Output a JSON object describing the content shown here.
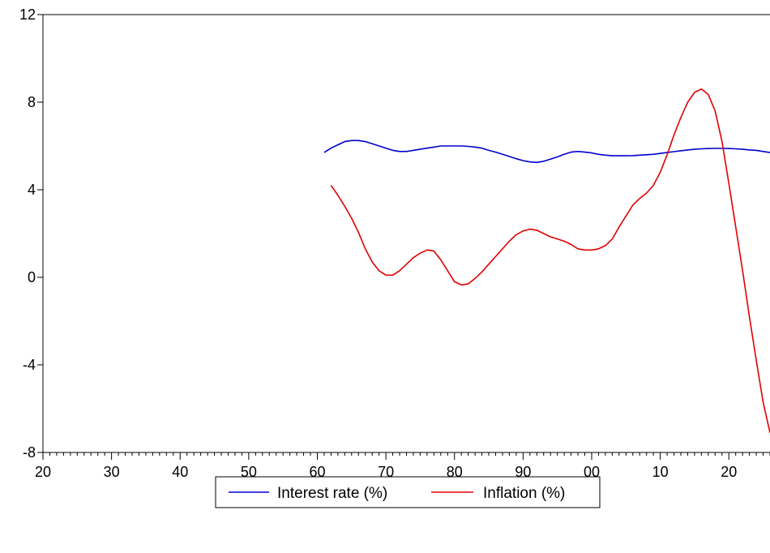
{
  "chart_data": {
    "type": "line",
    "title": "",
    "xlabel": "",
    "ylabel": "",
    "x_range": [
      1920,
      2026
    ],
    "ylim": [
      -8,
      12
    ],
    "y_ticks": [
      12,
      8,
      4,
      0,
      -4,
      -8
    ],
    "x_ticks": [
      {
        "value": 1920,
        "label": "20"
      },
      {
        "value": 1930,
        "label": "30"
      },
      {
        "value": 1940,
        "label": "40"
      },
      {
        "value": 1950,
        "label": "50"
      },
      {
        "value": 1960,
        "label": "60"
      },
      {
        "value": 1970,
        "label": "70"
      },
      {
        "value": 1980,
        "label": "80"
      },
      {
        "value": 1990,
        "label": "90"
      },
      {
        "value": 2000,
        "label": "00"
      },
      {
        "value": 2010,
        "label": "10"
      },
      {
        "value": 2020,
        "label": "20"
      }
    ],
    "grid": false,
    "legend_position": "bottom-center",
    "series": [
      {
        "name": "Interest rate (%)",
        "color": "#0000cc",
        "points": [
          [
            1961,
            5.7
          ],
          [
            1962,
            5.9
          ],
          [
            1963,
            6.05
          ],
          [
            1964,
            6.2
          ],
          [
            1965,
            6.25
          ],
          [
            1966,
            6.25
          ],
          [
            1967,
            6.2
          ],
          [
            1968,
            6.1
          ],
          [
            1969,
            6.0
          ],
          [
            1970,
            5.9
          ],
          [
            1971,
            5.8
          ],
          [
            1972,
            5.75
          ],
          [
            1973,
            5.75
          ],
          [
            1974,
            5.8
          ],
          [
            1975,
            5.85
          ],
          [
            1976,
            5.9
          ],
          [
            1977,
            5.95
          ],
          [
            1978,
            6.0
          ],
          [
            1979,
            6.0
          ],
          [
            1980,
            6.0
          ],
          [
            1981,
            6.0
          ],
          [
            1982,
            5.98
          ],
          [
            1983,
            5.95
          ],
          [
            1984,
            5.9
          ],
          [
            1985,
            5.8
          ],
          [
            1986,
            5.72
          ],
          [
            1987,
            5.62
          ],
          [
            1988,
            5.52
          ],
          [
            1989,
            5.42
          ],
          [
            1990,
            5.33
          ],
          [
            1991,
            5.27
          ],
          [
            1992,
            5.25
          ],
          [
            1993,
            5.3
          ],
          [
            1994,
            5.4
          ],
          [
            1995,
            5.5
          ],
          [
            1996,
            5.62
          ],
          [
            1997,
            5.72
          ],
          [
            1998,
            5.75
          ],
          [
            1999,
            5.72
          ],
          [
            2000,
            5.68
          ],
          [
            2001,
            5.62
          ],
          [
            2002,
            5.58
          ],
          [
            2003,
            5.55
          ],
          [
            2004,
            5.55
          ],
          [
            2005,
            5.55
          ],
          [
            2006,
            5.56
          ],
          [
            2007,
            5.58
          ],
          [
            2008,
            5.6
          ],
          [
            2009,
            5.62
          ],
          [
            2010,
            5.66
          ],
          [
            2011,
            5.7
          ],
          [
            2012,
            5.74
          ],
          [
            2013,
            5.78
          ],
          [
            2014,
            5.82
          ],
          [
            2015,
            5.85
          ],
          [
            2016,
            5.87
          ],
          [
            2017,
            5.88
          ],
          [
            2018,
            5.89
          ],
          [
            2019,
            5.89
          ],
          [
            2020,
            5.88
          ],
          [
            2021,
            5.87
          ],
          [
            2022,
            5.85
          ],
          [
            2023,
            5.82
          ],
          [
            2024,
            5.8
          ],
          [
            2025,
            5.75
          ],
          [
            2026,
            5.7
          ]
        ]
      },
      {
        "name": "Inflation (%)",
        "color": "#e00000",
        "points": [
          [
            1962,
            4.2
          ],
          [
            1963,
            3.75
          ],
          [
            1964,
            3.25
          ],
          [
            1965,
            2.7
          ],
          [
            1966,
            2.05
          ],
          [
            1967,
            1.3
          ],
          [
            1968,
            0.7
          ],
          [
            1969,
            0.3
          ],
          [
            1970,
            0.1
          ],
          [
            1971,
            0.1
          ],
          [
            1972,
            0.3
          ],
          [
            1973,
            0.6
          ],
          [
            1974,
            0.9
          ],
          [
            1975,
            1.1
          ],
          [
            1976,
            1.25
          ],
          [
            1977,
            1.2
          ],
          [
            1978,
            0.8
          ],
          [
            1979,
            0.3
          ],
          [
            1980,
            -0.2
          ],
          [
            1981,
            -0.35
          ],
          [
            1982,
            -0.3
          ],
          [
            1983,
            -0.05
          ],
          [
            1984,
            0.25
          ],
          [
            1985,
            0.6
          ],
          [
            1986,
            0.95
          ],
          [
            1987,
            1.3
          ],
          [
            1988,
            1.65
          ],
          [
            1989,
            1.95
          ],
          [
            1990,
            2.12
          ],
          [
            1991,
            2.2
          ],
          [
            1992,
            2.15
          ],
          [
            1993,
            2.0
          ],
          [
            1994,
            1.85
          ],
          [
            1995,
            1.75
          ],
          [
            1996,
            1.65
          ],
          [
            1997,
            1.5
          ],
          [
            1998,
            1.3
          ],
          [
            1999,
            1.25
          ],
          [
            2000,
            1.25
          ],
          [
            2001,
            1.3
          ],
          [
            2002,
            1.45
          ],
          [
            2003,
            1.75
          ],
          [
            2004,
            2.3
          ],
          [
            2005,
            2.8
          ],
          [
            2006,
            3.3
          ],
          [
            2007,
            3.6
          ],
          [
            2008,
            3.85
          ],
          [
            2009,
            4.2
          ],
          [
            2010,
            4.8
          ],
          [
            2011,
            5.6
          ],
          [
            2012,
            6.5
          ],
          [
            2013,
            7.3
          ],
          [
            2014,
            8.0
          ],
          [
            2015,
            8.45
          ],
          [
            2016,
            8.6
          ],
          [
            2017,
            8.35
          ],
          [
            2018,
            7.6
          ],
          [
            2019,
            6.2
          ],
          [
            2020,
            4.3
          ],
          [
            2021,
            2.3
          ],
          [
            2022,
            0.3
          ],
          [
            2023,
            -1.8
          ],
          [
            2024,
            -3.8
          ],
          [
            2025,
            -5.7
          ],
          [
            2026,
            -7.1
          ]
        ]
      }
    ]
  }
}
